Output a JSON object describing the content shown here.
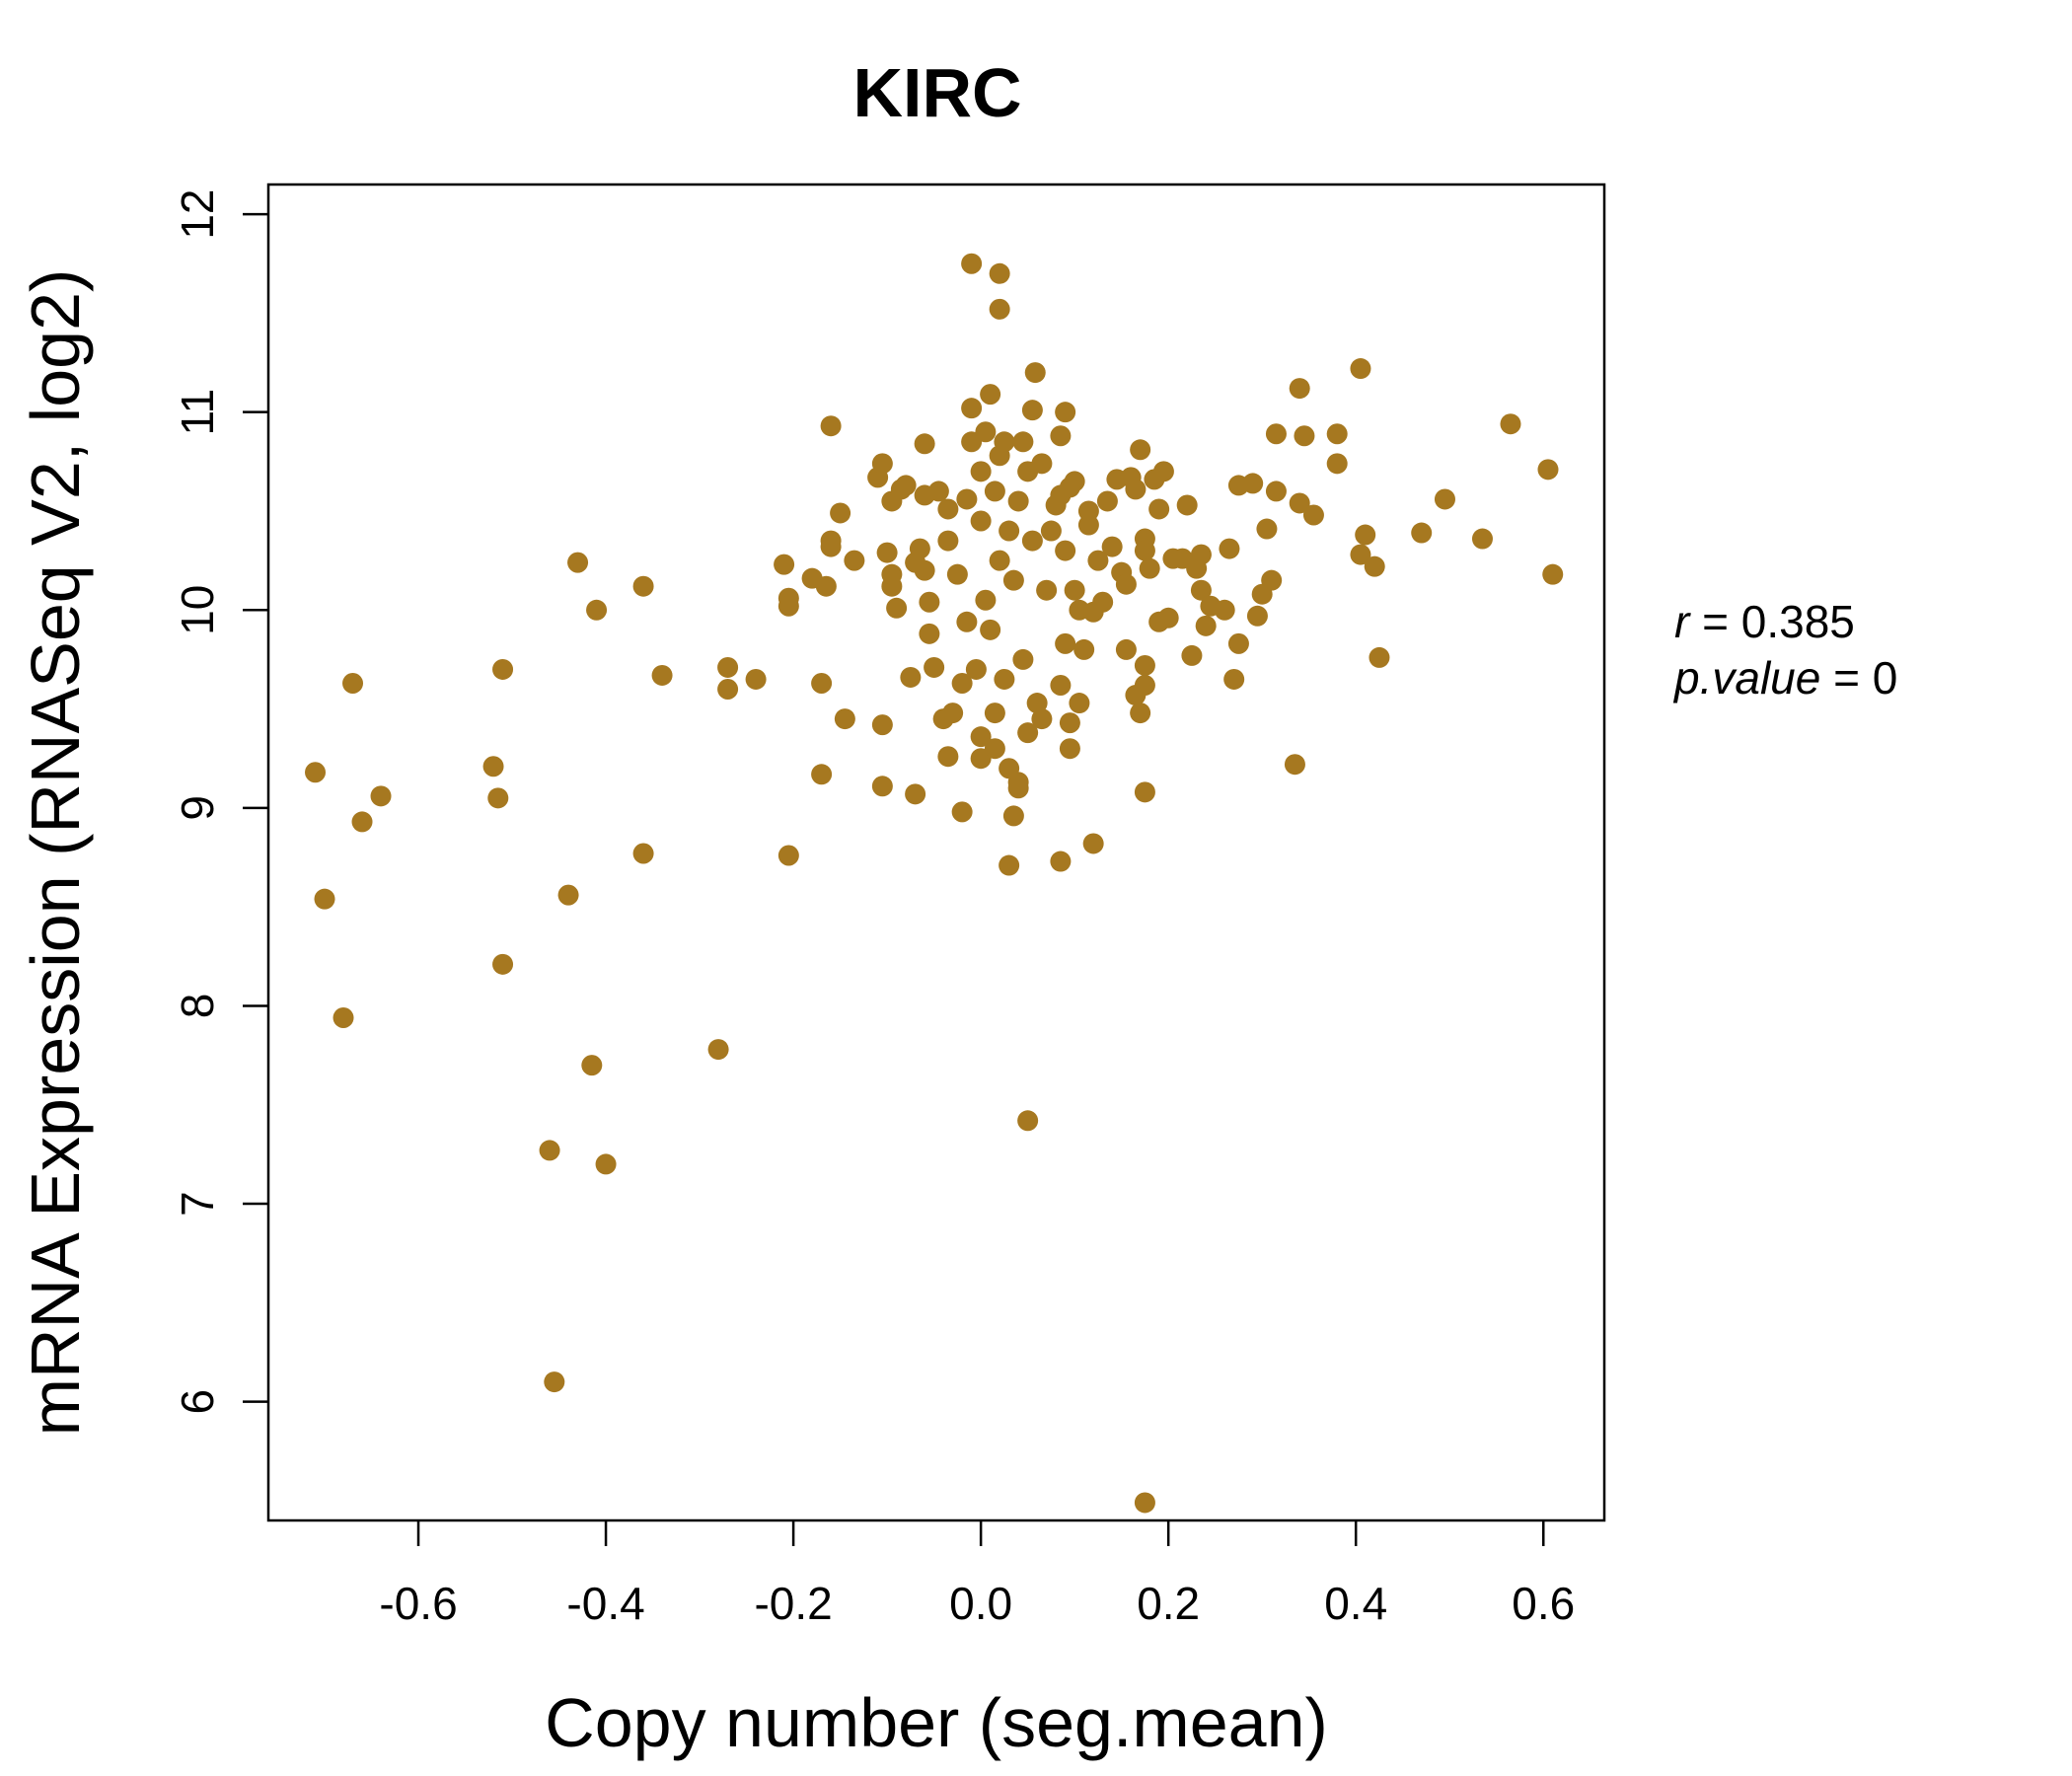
{
  "chart_data": {
    "type": "scatter",
    "title": "KIRC",
    "xlabel": "Copy number (seg.mean)",
    "ylabel": "mRNA Expression (RNASeq V2, log2)",
    "xlim": [
      -0.76,
      0.665
    ],
    "ylim": [
      5.4,
      12.15
    ],
    "xticks": [
      -0.6,
      -0.4,
      -0.2,
      0.0,
      0.2,
      0.4,
      0.6
    ],
    "xtick_labels": [
      "-0.6",
      "-0.4",
      "-0.2",
      "0.0",
      "0.2",
      "0.4",
      "0.6"
    ],
    "yticks": [
      6,
      7,
      8,
      9,
      10,
      11,
      12
    ],
    "ytick_labels": [
      "6",
      "7",
      "8",
      "9",
      "10",
      "11",
      "12"
    ],
    "grid": false,
    "color": "#A67820",
    "annotations": {
      "r": {
        "label": "r",
        "value": "0.385"
      },
      "p": {
        "label": "p.value",
        "value": "0"
      }
    },
    "points": [
      [
        -0.71,
        9.18
      ],
      [
        -0.7,
        8.54
      ],
      [
        -0.68,
        7.94
      ],
      [
        -0.67,
        9.63
      ],
      [
        -0.66,
        8.93
      ],
      [
        -0.64,
        9.06
      ],
      [
        -0.52,
        9.21
      ],
      [
        -0.515,
        9.05
      ],
      [
        -0.51,
        8.21
      ],
      [
        -0.51,
        9.7
      ],
      [
        -0.46,
        7.27
      ],
      [
        -0.455,
        6.1
      ],
      [
        -0.44,
        8.56
      ],
      [
        -0.43,
        10.24
      ],
      [
        -0.415,
        7.7
      ],
      [
        -0.41,
        10.0
      ],
      [
        -0.4,
        7.2
      ],
      [
        -0.36,
        8.77
      ],
      [
        -0.36,
        10.12
      ],
      [
        -0.34,
        9.67
      ],
      [
        -0.28,
        7.78
      ],
      [
        -0.27,
        9.71
      ],
      [
        -0.27,
        9.6
      ],
      [
        -0.24,
        9.65
      ],
      [
        -0.21,
        10.23
      ],
      [
        -0.205,
        10.06
      ],
      [
        -0.205,
        10.02
      ],
      [
        -0.205,
        8.76
      ],
      [
        -0.18,
        10.16
      ],
      [
        -0.17,
        9.63
      ],
      [
        -0.17,
        9.17
      ],
      [
        -0.165,
        10.12
      ],
      [
        -0.16,
        10.35
      ],
      [
        -0.16,
        10.32
      ],
      [
        -0.16,
        10.93
      ],
      [
        -0.15,
        10.49
      ],
      [
        -0.145,
        9.45
      ],
      [
        -0.135,
        10.25
      ],
      [
        -0.11,
        10.67
      ],
      [
        -0.105,
        10.74
      ],
      [
        -0.105,
        9.42
      ],
      [
        -0.105,
        9.11
      ],
      [
        -0.1,
        10.29
      ],
      [
        -0.095,
        10.55
      ],
      [
        -0.095,
        10.12
      ],
      [
        -0.095,
        10.18
      ],
      [
        -0.09,
        10.01
      ],
      [
        -0.085,
        10.61
      ],
      [
        -0.08,
        10.63
      ],
      [
        -0.075,
        9.66
      ],
      [
        -0.07,
        10.24
      ],
      [
        -0.07,
        9.07
      ],
      [
        -0.065,
        10.31
      ],
      [
        -0.06,
        10.84
      ],
      [
        -0.06,
        10.58
      ],
      [
        -0.06,
        10.2
      ],
      [
        -0.055,
        10.04
      ],
      [
        -0.055,
        9.88
      ],
      [
        -0.05,
        9.71
      ],
      [
        -0.045,
        10.6
      ],
      [
        -0.04,
        9.45
      ],
      [
        -0.035,
        10.51
      ],
      [
        -0.035,
        10.35
      ],
      [
        -0.035,
        9.26
      ],
      [
        -0.03,
        9.48
      ],
      [
        -0.025,
        10.18
      ],
      [
        -0.02,
        9.63
      ],
      [
        -0.02,
        8.98
      ],
      [
        -0.015,
        10.56
      ],
      [
        -0.015,
        9.94
      ],
      [
        -0.01,
        11.02
      ],
      [
        -0.01,
        10.85
      ],
      [
        -0.01,
        11.75
      ],
      [
        -0.005,
        9.7
      ],
      [
        0.0,
        10.45
      ],
      [
        0.0,
        10.7
      ],
      [
        0.0,
        9.36
      ],
      [
        0.0,
        9.25
      ],
      [
        0.005,
        10.9
      ],
      [
        0.005,
        10.05
      ],
      [
        0.01,
        11.09
      ],
      [
        0.01,
        9.9
      ],
      [
        0.015,
        10.6
      ],
      [
        0.015,
        9.48
      ],
      [
        0.015,
        9.3
      ],
      [
        0.02,
        11.7
      ],
      [
        0.02,
        11.52
      ],
      [
        0.02,
        10.78
      ],
      [
        0.02,
        10.25
      ],
      [
        0.025,
        10.85
      ],
      [
        0.025,
        9.65
      ],
      [
        0.03,
        10.4
      ],
      [
        0.03,
        9.2
      ],
      [
        0.03,
        8.71
      ],
      [
        0.035,
        10.15
      ],
      [
        0.035,
        8.96
      ],
      [
        0.04,
        10.55
      ],
      [
        0.04,
        9.13
      ],
      [
        0.04,
        9.1
      ],
      [
        0.045,
        10.85
      ],
      [
        0.045,
        9.75
      ],
      [
        0.05,
        10.7
      ],
      [
        0.05,
        9.38
      ],
      [
        0.05,
        7.42
      ],
      [
        0.055,
        11.01
      ],
      [
        0.055,
        10.35
      ],
      [
        0.058,
        11.2
      ],
      [
        0.06,
        9.53
      ],
      [
        0.065,
        10.74
      ],
      [
        0.065,
        9.45
      ],
      [
        0.07,
        10.1
      ],
      [
        0.075,
        10.4
      ],
      [
        0.08,
        10.53
      ],
      [
        0.085,
        10.58
      ],
      [
        0.085,
        10.88
      ],
      [
        0.085,
        9.62
      ],
      [
        0.085,
        8.73
      ],
      [
        0.09,
        11.0
      ],
      [
        0.09,
        10.3
      ],
      [
        0.09,
        9.83
      ],
      [
        0.095,
        10.62
      ],
      [
        0.095,
        9.43
      ],
      [
        0.095,
        9.3
      ],
      [
        0.1,
        10.65
      ],
      [
        0.1,
        10.1
      ],
      [
        0.105,
        10.0
      ],
      [
        0.105,
        9.53
      ],
      [
        0.11,
        9.8
      ],
      [
        0.115,
        10.5
      ],
      [
        0.115,
        10.43
      ],
      [
        0.12,
        9.99
      ],
      [
        0.12,
        8.82
      ],
      [
        0.125,
        10.25
      ],
      [
        0.13,
        10.04
      ],
      [
        0.135,
        10.55
      ],
      [
        0.14,
        10.32
      ],
      [
        0.145,
        10.66
      ],
      [
        0.15,
        10.19
      ],
      [
        0.155,
        10.13
      ],
      [
        0.155,
        9.8
      ],
      [
        0.16,
        10.67
      ],
      [
        0.165,
        10.61
      ],
      [
        0.165,
        9.57
      ],
      [
        0.17,
        10.81
      ],
      [
        0.17,
        9.48
      ],
      [
        0.175,
        10.36
      ],
      [
        0.175,
        10.3
      ],
      [
        0.175,
        9.72
      ],
      [
        0.175,
        9.62
      ],
      [
        0.175,
        9.08
      ],
      [
        0.175,
        5.49
      ],
      [
        0.18,
        10.21
      ],
      [
        0.185,
        10.66
      ],
      [
        0.19,
        10.51
      ],
      [
        0.19,
        9.94
      ],
      [
        0.195,
        10.7
      ],
      [
        0.2,
        9.96
      ],
      [
        0.205,
        10.26
      ],
      [
        0.215,
        10.26
      ],
      [
        0.22,
        10.53
      ],
      [
        0.225,
        9.77
      ],
      [
        0.23,
        10.21
      ],
      [
        0.235,
        10.28
      ],
      [
        0.235,
        10.1
      ],
      [
        0.24,
        9.92
      ],
      [
        0.245,
        10.02
      ],
      [
        0.26,
        10.0
      ],
      [
        0.265,
        10.31
      ],
      [
        0.27,
        9.65
      ],
      [
        0.275,
        10.63
      ],
      [
        0.275,
        9.83
      ],
      [
        0.29,
        10.64
      ],
      [
        0.295,
        9.97
      ],
      [
        0.3,
        10.08
      ],
      [
        0.305,
        10.41
      ],
      [
        0.31,
        10.15
      ],
      [
        0.315,
        10.6
      ],
      [
        0.315,
        10.89
      ],
      [
        0.335,
        9.22
      ],
      [
        0.34,
        10.54
      ],
      [
        0.345,
        10.88
      ],
      [
        0.34,
        11.12
      ],
      [
        0.355,
        10.48
      ],
      [
        0.38,
        10.89
      ],
      [
        0.38,
        10.74
      ],
      [
        0.405,
        11.22
      ],
      [
        0.405,
        10.28
      ],
      [
        0.41,
        10.38
      ],
      [
        0.42,
        10.22
      ],
      [
        0.425,
        9.76
      ],
      [
        0.47,
        10.39
      ],
      [
        0.495,
        10.56
      ],
      [
        0.535,
        10.36
      ],
      [
        0.565,
        10.94
      ],
      [
        0.605,
        10.71
      ],
      [
        0.61,
        10.18
      ]
    ]
  }
}
